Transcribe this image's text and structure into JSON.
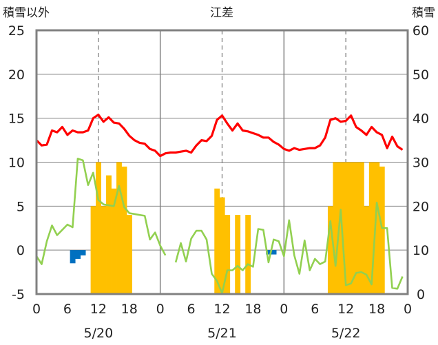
{
  "chart_data": {
    "type": "bar+line",
    "title": "江差",
    "left_axis_label": "積雪以外",
    "right_axis_label": "積雪",
    "left_ylim": [
      -5,
      25
    ],
    "right_ylim": [
      0,
      60
    ],
    "left_ticks": [
      25,
      20,
      15,
      10,
      5,
      0,
      -5
    ],
    "right_ticks": [
      60,
      50,
      40,
      30,
      20,
      10,
      0
    ],
    "x_tick_labels": [
      "0",
      "6",
      "12",
      "18",
      "0",
      "6",
      "12",
      "18",
      "0",
      "6",
      "12",
      "18",
      "0"
    ],
    "date_labels": [
      "5/20",
      "5/21",
      "5/22"
    ],
    "hours_total": 72,
    "colors": {
      "temperature": "#ff0000",
      "green_line": "#92d050",
      "snow_bars": "#ffc000",
      "negative_bars": "#0070c0",
      "frame": "#808080",
      "grid": "#808080"
    },
    "series": [
      {
        "kind": "line",
        "axis": "left",
        "color": "#ff0000",
        "points": [
          [
            0,
            12.5
          ],
          [
            1,
            11.9
          ],
          [
            2,
            12.0
          ],
          [
            3,
            13.6
          ],
          [
            4,
            13.4
          ],
          [
            5,
            14.0
          ],
          [
            6,
            13.1
          ],
          [
            7,
            13.6
          ],
          [
            8,
            13.4
          ],
          [
            9,
            13.4
          ],
          [
            10,
            13.6
          ],
          [
            11,
            15.0
          ],
          [
            12,
            15.4
          ],
          [
            13,
            14.6
          ],
          [
            14,
            15.1
          ],
          [
            15,
            14.5
          ],
          [
            16,
            14.4
          ],
          [
            17,
            13.8
          ],
          [
            18,
            13.0
          ],
          [
            19,
            12.5
          ],
          [
            20,
            12.2
          ],
          [
            21,
            12.1
          ],
          [
            22,
            11.5
          ],
          [
            23,
            11.3
          ],
          [
            24,
            10.7
          ],
          [
            25,
            11.0
          ],
          [
            26,
            11.1
          ],
          [
            27,
            11.1
          ],
          [
            28,
            11.2
          ],
          [
            29,
            11.3
          ],
          [
            30,
            11.1
          ],
          [
            31,
            11.9
          ],
          [
            32,
            12.5
          ],
          [
            33,
            12.4
          ],
          [
            34,
            13.0
          ],
          [
            35,
            14.8
          ],
          [
            36,
            15.3
          ],
          [
            37,
            14.4
          ],
          [
            38,
            13.6
          ],
          [
            39,
            14.4
          ],
          [
            40,
            13.6
          ],
          [
            41,
            13.5
          ],
          [
            42,
            13.3
          ],
          [
            43,
            13.1
          ],
          [
            44,
            12.8
          ],
          [
            45,
            12.8
          ],
          [
            46,
            12.3
          ],
          [
            47,
            12.0
          ],
          [
            48,
            11.5
          ],
          [
            49,
            11.3
          ],
          [
            50,
            11.6
          ],
          [
            51,
            11.4
          ],
          [
            52,
            11.5
          ],
          [
            53,
            11.6
          ],
          [
            54,
            11.6
          ],
          [
            55,
            11.9
          ],
          [
            56,
            12.8
          ],
          [
            57,
            14.8
          ],
          [
            58,
            15.0
          ],
          [
            59,
            14.6
          ],
          [
            60,
            14.7
          ],
          [
            61,
            15.3
          ],
          [
            62,
            14.0
          ],
          [
            63,
            13.6
          ],
          [
            64,
            13.1
          ],
          [
            65,
            14.0
          ],
          [
            66,
            13.4
          ],
          [
            67,
            13.1
          ],
          [
            68,
            11.6
          ],
          [
            69,
            12.9
          ],
          [
            70,
            11.8
          ],
          [
            71,
            11.4
          ]
        ]
      },
      {
        "kind": "line",
        "axis": "left",
        "color": "#92d050",
        "segments": [
          [
            [
              0,
              -0.7
            ],
            [
              1,
              -1.6
            ],
            [
              2,
              1.0
            ],
            [
              3,
              2.8
            ],
            [
              4,
              1.7
            ],
            [
              5,
              2.3
            ],
            [
              6,
              2.9
            ],
            [
              7,
              2.6
            ],
            [
              8,
              10.4
            ],
            [
              9,
              10.2
            ],
            [
              10,
              7.4
            ],
            [
              11,
              8.8
            ],
            [
              12,
              5.7
            ],
            [
              13,
              5.2
            ],
            [
              14,
              5.1
            ],
            [
              15,
              5.0
            ],
            [
              16,
              7.3
            ],
            [
              17,
              4.9
            ],
            [
              18,
              4.2
            ],
            [
              19,
              4.1
            ],
            [
              20,
              4.0
            ],
            [
              21,
              3.9
            ],
            [
              22,
              1.2
            ],
            [
              23,
              2.0
            ],
            [
              24,
              0.5
            ],
            [
              25,
              -0.6
            ]
          ],
          [
            [
              27,
              -1.4
            ],
            [
              28,
              0.8
            ],
            [
              29,
              -1.3
            ],
            [
              30,
              1.3
            ],
            [
              31,
              2.2
            ],
            [
              32,
              2.2
            ],
            [
              33,
              1.2
            ],
            [
              34,
              -2.7
            ],
            [
              35,
              -3.5
            ],
            [
              36,
              -4.9
            ],
            [
              37,
              -2.3
            ],
            [
              38,
              -2.3
            ],
            [
              39,
              -1.8
            ],
            [
              40,
              -2.3
            ],
            [
              41,
              -1.6
            ],
            [
              42,
              -1.9
            ],
            [
              43,
              2.4
            ],
            [
              44,
              2.3
            ],
            [
              45,
              -1.4
            ],
            [
              46,
              1.2
            ],
            [
              47,
              1.0
            ],
            [
              48,
              -0.7
            ],
            [
              49,
              3.4
            ],
            [
              50,
              -0.6
            ],
            [
              51,
              -2.7
            ],
            [
              52,
              1.1
            ],
            [
              53,
              -2.3
            ],
            [
              54,
              -1.0
            ],
            [
              55,
              -1.6
            ],
            [
              56,
              -1.3
            ],
            [
              57,
              3.3
            ],
            [
              58,
              -1.8
            ],
            [
              59,
              4.6
            ],
            [
              60,
              -4.0
            ],
            [
              61,
              -3.8
            ],
            [
              62,
              -2.6
            ],
            [
              63,
              -2.5
            ],
            [
              64,
              -2.8
            ],
            [
              65,
              -3.9
            ],
            [
              66,
              5.4
            ],
            [
              67,
              2.5
            ],
            [
              68,
              2.5
            ],
            [
              69,
              -4.3
            ],
            [
              70,
              -4.4
            ],
            [
              71,
              -3.0
            ]
          ]
        ]
      },
      {
        "kind": "bar",
        "axis": "right",
        "color": "#ffc000",
        "bars": [
          [
            11,
            20
          ],
          [
            12,
            30
          ],
          [
            13,
            20
          ],
          [
            14,
            27
          ],
          [
            15,
            24
          ],
          [
            16,
            30
          ],
          [
            17,
            29
          ],
          [
            18,
            18
          ],
          [
            35,
            24
          ],
          [
            36,
            22
          ],
          [
            37,
            18
          ],
          [
            39,
            18
          ],
          [
            41,
            18
          ],
          [
            57,
            20
          ],
          [
            58,
            30
          ],
          [
            59,
            30
          ],
          [
            60,
            30
          ],
          [
            61,
            30
          ],
          [
            62,
            30
          ],
          [
            63,
            30
          ],
          [
            64,
            20
          ],
          [
            65,
            30
          ],
          [
            66,
            30
          ],
          [
            67,
            29
          ]
        ]
      },
      {
        "kind": "bar",
        "axis": "left",
        "color": "#0070c0",
        "bars": [
          [
            7,
            -1.5
          ],
          [
            8,
            -1.0
          ],
          [
            9,
            -0.6
          ],
          [
            45,
            -0.5
          ],
          [
            46,
            -0.5
          ]
        ]
      }
    ]
  }
}
